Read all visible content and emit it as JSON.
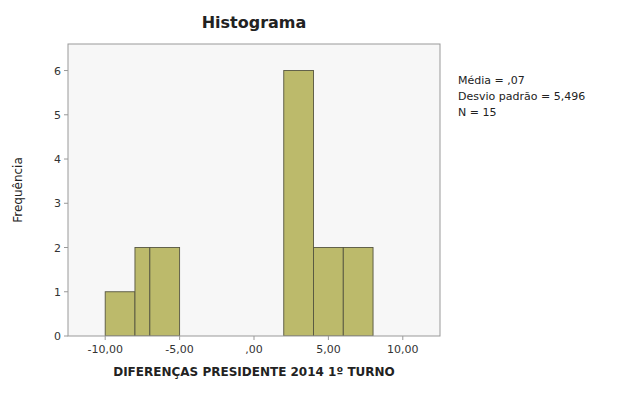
{
  "chart_data": {
    "type": "histogram",
    "title": "Histograma",
    "x_label": "DIFERENÇAS PRESIDENTE 2014 1º TURNO",
    "y_label": "Frequência",
    "bin_lefts": [
      -10,
      -8,
      -7,
      2,
      4,
      6
    ],
    "bin_rights": [
      -8,
      -7,
      -5,
      4,
      6,
      8
    ],
    "values": [
      1,
      2,
      2,
      6,
      2,
      2
    ],
    "color": "#bcba6b",
    "xlim": [
      -12.5,
      12.5
    ],
    "xticks": [
      {
        "value": -10,
        "label": "-10,00"
      },
      {
        "value": -5,
        "label": "-5,00"
      },
      {
        "value": 0,
        "label": ",00"
      },
      {
        "value": 5,
        "label": "5,00"
      },
      {
        "value": 10,
        "label": "10,00"
      }
    ],
    "ylim": [
      0,
      6.6
    ],
    "yticks": [
      0,
      1,
      2,
      3,
      4,
      5,
      6
    ],
    "annotation": "Média = ,07\nDesvio padrão = 5,496\nN = 15",
    "grid": false
  }
}
